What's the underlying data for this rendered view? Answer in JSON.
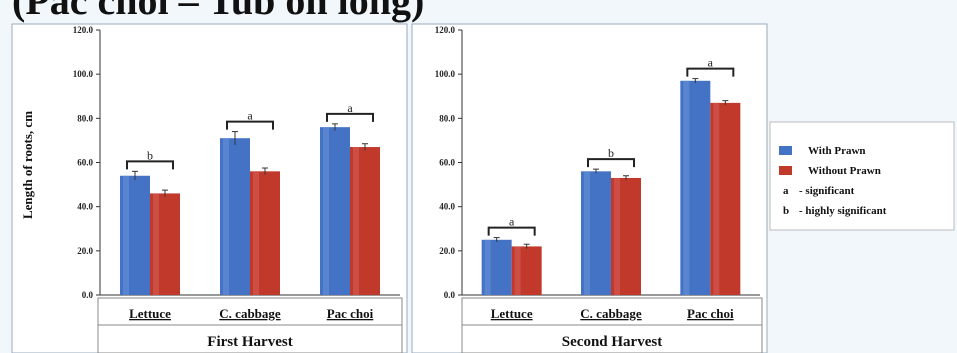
{
  "header": {
    "title": "(Pac choi – Tub on long)"
  },
  "chart_data": [
    {
      "type": "bar",
      "ylabel": "Length of roots, cm",
      "xlabel": "First Harvest",
      "ylim": [
        0,
        120
      ],
      "yticks": [
        "0.0",
        "20.0",
        "40.0",
        "60.0",
        "80.0",
        "100.0",
        "120.0"
      ],
      "categories": [
        "Lettuce",
        "C. cabbage",
        "Pac choi"
      ],
      "series": [
        {
          "name": "With Prawn",
          "values": [
            54,
            71,
            76
          ],
          "errors": [
            2,
            3,
            1.5
          ]
        },
        {
          "name": "Without Prawn",
          "values": [
            46,
            56,
            67
          ],
          "errors": [
            1.5,
            1.5,
            1.5
          ]
        }
      ],
      "significance": [
        "b",
        "a",
        "a"
      ],
      "grid": false
    },
    {
      "type": "bar",
      "xlabel": "Second Harvest",
      "ylim": [
        0,
        120
      ],
      "yticks": [
        "0.0",
        "20.0",
        "40.0",
        "60.0",
        "80.0",
        "100.0",
        "120.0"
      ],
      "categories": [
        "Lettuce",
        "C. cabbage",
        "Pac choi"
      ],
      "series": [
        {
          "name": "With Prawn",
          "values": [
            25,
            56,
            97
          ],
          "errors": [
            1,
            1,
            1
          ]
        },
        {
          "name": "Without Prawn",
          "values": [
            22,
            53,
            87
          ],
          "errors": [
            1,
            1,
            1
          ]
        }
      ],
      "significance": [
        "a",
        "b",
        "a"
      ],
      "grid": false
    }
  ],
  "legend": {
    "items": [
      {
        "name": "With Prawn",
        "color": "#4472c4"
      },
      {
        "name": "Without Prawn",
        "color": "#c0392b"
      }
    ],
    "notes": [
      {
        "key": "a",
        "text": "- significant"
      },
      {
        "key": "b",
        "text": "- highly significant"
      }
    ]
  },
  "colors": {
    "with_prawn": "#4472c4",
    "without_prawn": "#c0504d",
    "panel_bg": "#ffffff"
  }
}
